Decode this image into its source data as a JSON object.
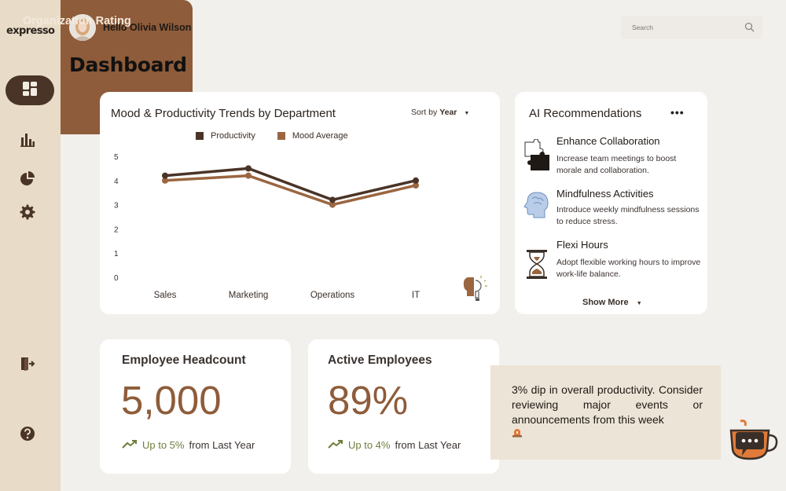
{
  "app": {
    "brand": "expresso"
  },
  "header": {
    "greeting": "Hello Olivia Wilson",
    "search_placeholder": "Search"
  },
  "page": {
    "title": "Dashboard"
  },
  "sidebar": {
    "items": [
      {
        "icon": "dashboard-icon",
        "active": true
      },
      {
        "icon": "bar-chart-icon",
        "active": false
      },
      {
        "icon": "pie-chart-icon",
        "active": false
      },
      {
        "icon": "gear-icon",
        "active": false
      },
      {
        "icon": "logout-icon",
        "active": false
      },
      {
        "icon": "help-icon",
        "active": false
      }
    ]
  },
  "trend_card": {
    "title": "Mood & Productivity Trends by Department",
    "sort_prefix": "Sort by",
    "sort_value": "Year",
    "legend": [
      "Productivity",
      "Mood Average"
    ]
  },
  "chart_data": {
    "type": "line",
    "categories": [
      "Sales",
      "Marketing",
      "Operations",
      "IT"
    ],
    "series": [
      {
        "name": "Productivity",
        "values": [
          4.2,
          4.5,
          3.2,
          4.0
        ],
        "color": "#4a3427"
      },
      {
        "name": "Mood Average",
        "values": [
          4.0,
          4.2,
          3.0,
          3.8
        ],
        "color": "#9a6640"
      }
    ],
    "yticks": [
      "5",
      "4",
      "3",
      "2",
      "1",
      "0"
    ],
    "ylim": [
      0,
      5
    ],
    "grid": false,
    "legend_position": "top-center"
  },
  "ai_card": {
    "title": "AI Recommendations",
    "items": [
      {
        "icon": "puzzle-icon",
        "title": "Enhance Collaboration",
        "desc": "Increase team meetings to boost morale and collaboration."
      },
      {
        "icon": "brain-icon",
        "title": "Mindfulness Activities",
        "desc": "Introduce weekly mindfulness sessions to reduce stress."
      },
      {
        "icon": "hourglass-icon",
        "title": "Flexi Hours",
        "desc": "Adopt flexible working hours to improve work-life balance."
      }
    ],
    "show_more": "Show More"
  },
  "stats": [
    {
      "title": "Employee Headcount",
      "value": "5,000",
      "trend_up": "Up to 5%",
      "trend_rest": "from Last Year"
    },
    {
      "title": "Active Employees",
      "value": "89%",
      "trend_up": "Up to 4%",
      "trend_rest": "from Last Year"
    }
  ],
  "org_card": {
    "title": "Organization Rating"
  },
  "alert": {
    "text": "3% dip in overall productivity. Consider reviewing major events or announcements from this week"
  },
  "colors": {
    "sidebar": "#e8dcc8",
    "accent_dark": "#4a3427",
    "accent_brown": "#8e5c3a",
    "trend_green": "#6e7e3c",
    "background": "#f2f0ec"
  }
}
